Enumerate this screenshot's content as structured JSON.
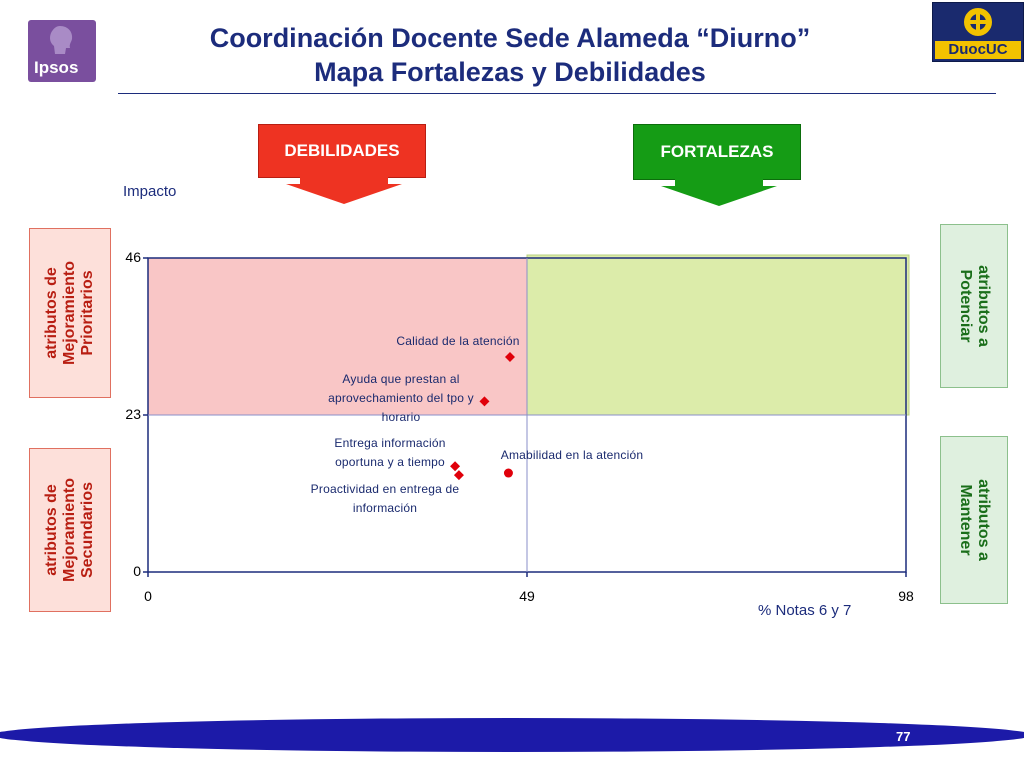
{
  "header": {
    "title_line1": "Coordinación Docente Sede Alameda “Diurno”",
    "title_line2": "Mapa Fortalezas y Debilidades",
    "logo_left_text": "Ipsos",
    "logo_right_text": "DuocUC"
  },
  "arrows": {
    "debilidades": "DEBILIDADES",
    "fortalezas": "FORTALEZAS"
  },
  "side_labels": {
    "prioritarios": [
      "atributos de",
      "Mejoramiento",
      "Prioritarios"
    ],
    "secundarios": [
      "atributos de",
      "Mejoramiento",
      "Secundarios"
    ],
    "potenciar": [
      "atributos a",
      "Potenciar"
    ],
    "mantener": [
      "atributos a",
      "Mantener"
    ]
  },
  "chart_data": {
    "type": "scatter",
    "ylabel": "Impacto",
    "xlabel": "% Notas 6 y 7",
    "xlim": [
      0,
      98
    ],
    "ylim": [
      0,
      46
    ],
    "xticks": [
      "0",
      "49",
      "98"
    ],
    "yticks": [
      "0",
      "23",
      "46"
    ],
    "quadrant_split": {
      "x": 49,
      "y": 23
    },
    "quadrant_colors": {
      "debilidades": "#f9c6c6",
      "fortalezas": "#dcecaa"
    },
    "points": [
      {
        "label": "Calidad de la atención",
        "x": 46.8,
        "y": 31.5,
        "marker": "diamond"
      },
      {
        "label": "Ayuda que prestan al aprovechamiento del tpo y horario",
        "x": 43.5,
        "y": 25.0,
        "marker": "diamond"
      },
      {
        "label": "Amabilidad en la atención",
        "x": 46.6,
        "y": 14.5,
        "marker": "circle"
      },
      {
        "label": "Entrega información oportuna y a tiempo",
        "x": 39.7,
        "y": 15.5,
        "marker": "diamond"
      },
      {
        "label": "Proactividad en entrega de información",
        "x": 40.2,
        "y": 14.2,
        "marker": "diamond"
      }
    ]
  },
  "footer": {
    "page_number": "77"
  }
}
